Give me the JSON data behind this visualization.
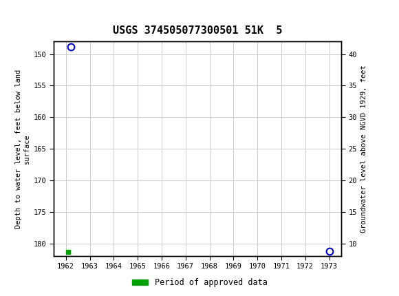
{
  "title": "USGS 374505077300501 51K  5",
  "ylabel_left": "Depth to water level, feet below land\nsurface",
  "ylabel_right": "Groundwater level above NGVD 1929, feet",
  "ylim_left_top": 148,
  "ylim_left_bottom": 182,
  "ylim_right_top": 42,
  "ylim_right_bottom": 8,
  "xlim": [
    1961.5,
    1973.5
  ],
  "yticks_left": [
    150,
    155,
    160,
    165,
    170,
    175,
    180
  ],
  "yticks_right": [
    40,
    35,
    30,
    25,
    20,
    15,
    10
  ],
  "xticks": [
    1962,
    1963,
    1964,
    1965,
    1966,
    1967,
    1968,
    1969,
    1970,
    1971,
    1972,
    1973
  ],
  "blue_circle_points": [
    [
      1962.2,
      148.8
    ],
    [
      1973.0,
      181.2
    ]
  ],
  "green_square_points": [
    [
      1962.1,
      181.3
    ]
  ],
  "header_color": "#1a6b3c",
  "grid_color": "#cccccc",
  "background_color": "#ffffff",
  "legend_label": "Period of approved data",
  "legend_color": "#00a000",
  "font_family": "DejaVu Sans Mono"
}
